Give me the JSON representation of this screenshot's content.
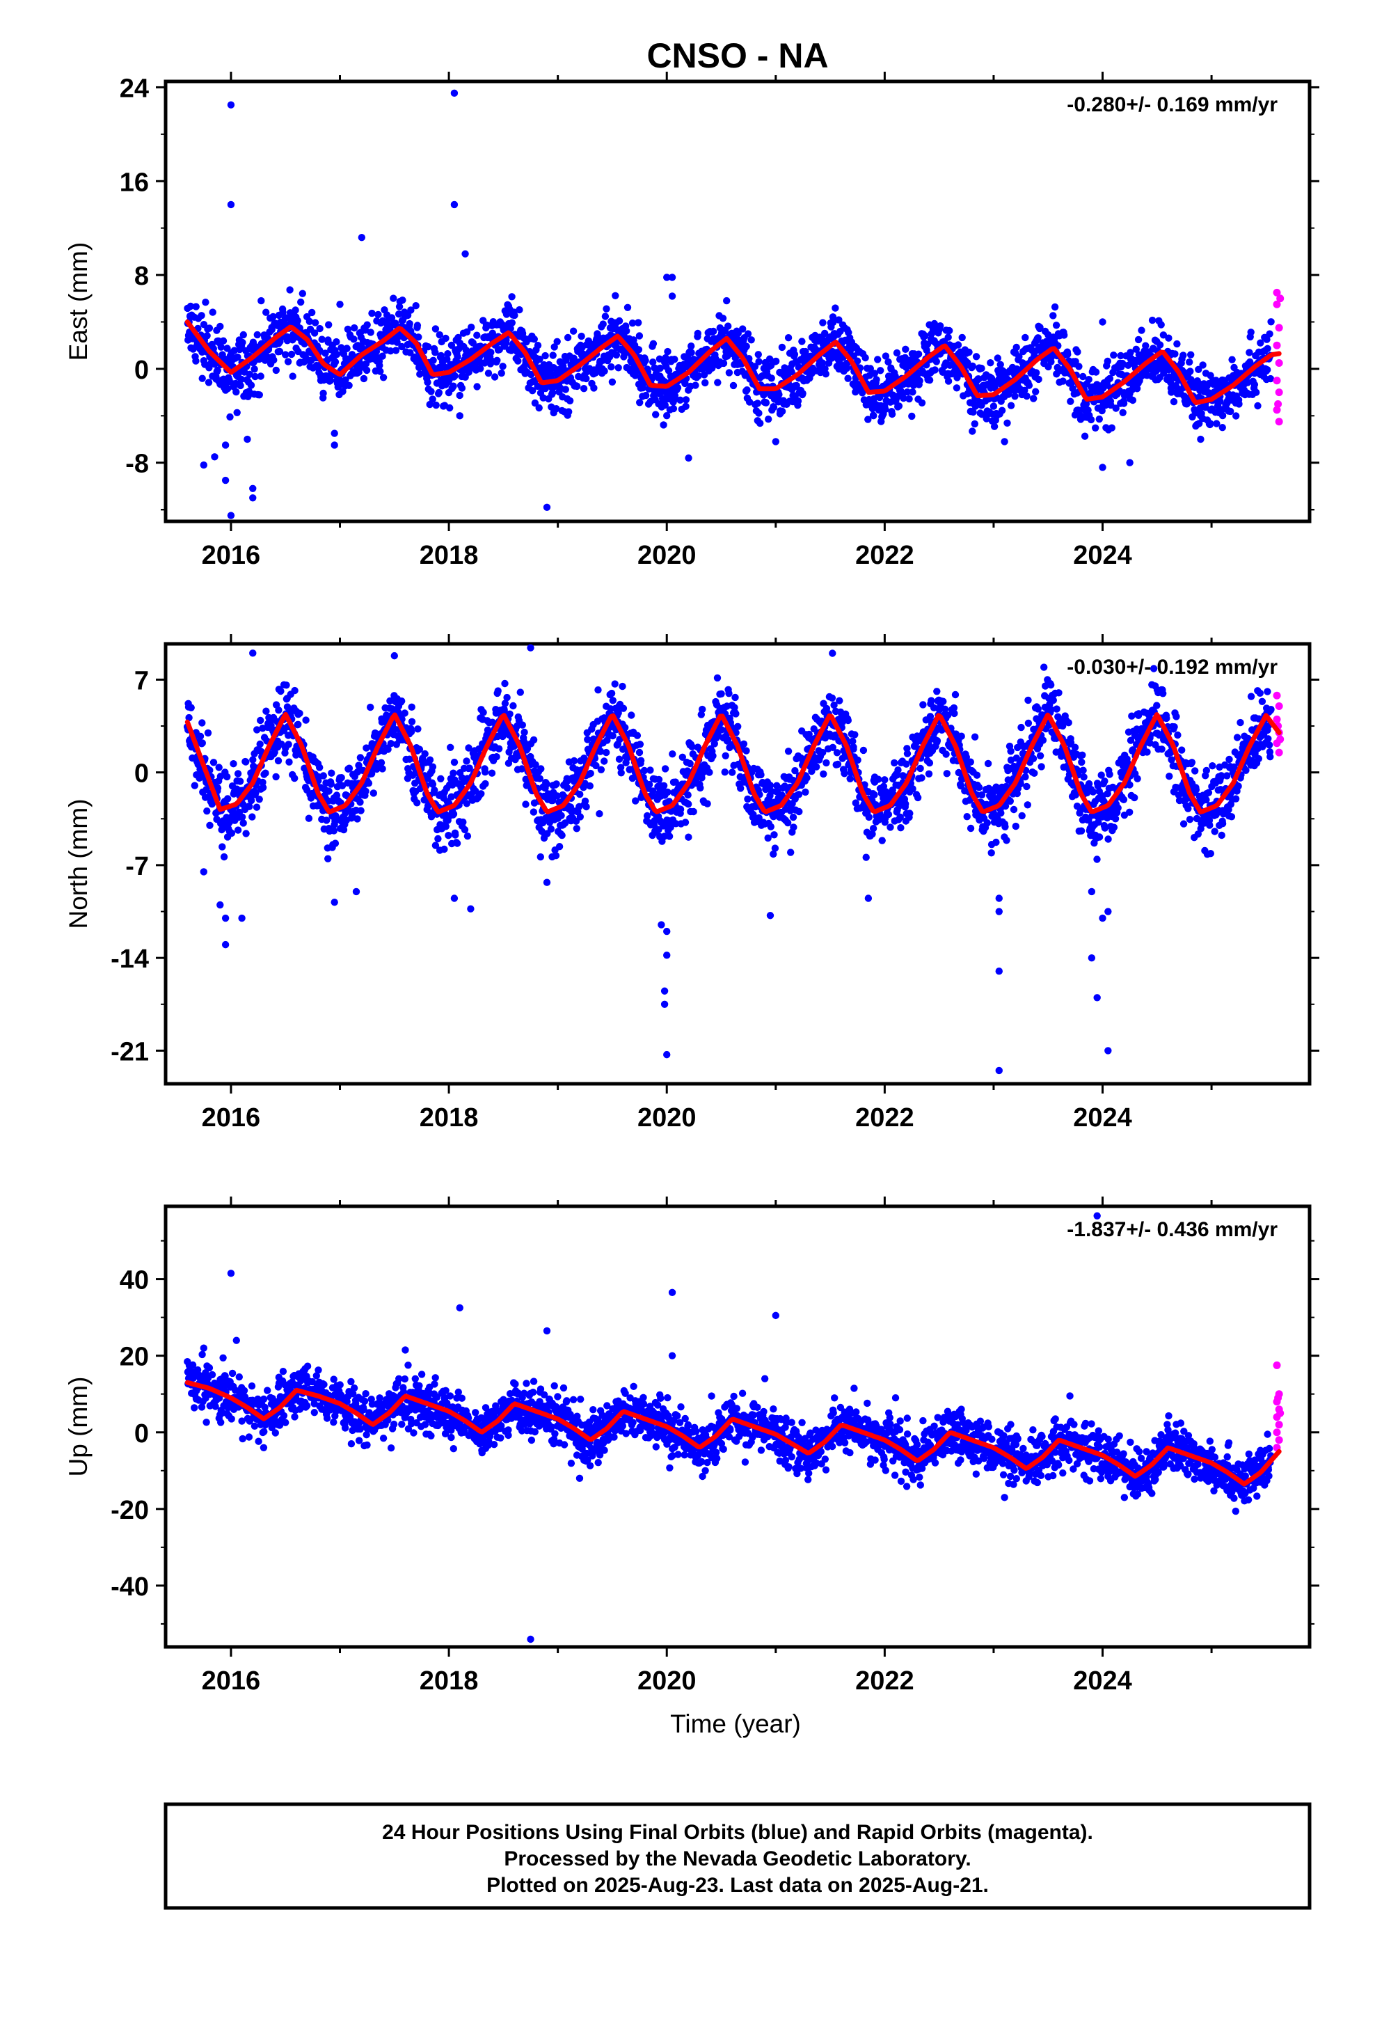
{
  "figure": {
    "title": "CNSO - NA",
    "xlabel": "Time (year)",
    "footer": [
      "24 Hour Positions Using Final Orbits (blue) and Rapid Orbits (magenta).",
      "Processed by the Nevada Geodetic Laboratory.",
      "Plotted on 2025-Aug-23. Last data on 2025-Aug-21."
    ],
    "colors": {
      "final": "#0000ff",
      "rapid": "#ff00ff",
      "model": "#ff0000",
      "frame": "#000000"
    }
  },
  "chart_data": [
    {
      "type": "scatter",
      "ylabel": "East (mm)",
      "rate": "-0.280+/- 0.169 mm/yr",
      "xlim": [
        2015.4,
        2025.9
      ],
      "ylim": [
        -13,
        24.5
      ],
      "yticks": [
        -8,
        0,
        8,
        16,
        24
      ],
      "yticklabels": [
        "-8",
        "0",
        "8",
        "16",
        "24"
      ],
      "xticks": [
        2016,
        2018,
        2020,
        2022,
        2024
      ],
      "xticklabels": [
        "2016",
        "2018",
        "2020",
        "2022",
        "2024"
      ],
      "model": {
        "x": [
          2015.6,
          2015.8,
          2016.0,
          2016.2,
          2016.4,
          2016.55,
          2016.7,
          2016.85,
          2017.0,
          2017.2,
          2017.4,
          2017.55,
          2017.7,
          2017.85,
          2018.0,
          2018.2,
          2018.4,
          2018.55,
          2018.7,
          2018.85,
          2019.0,
          2019.2,
          2019.4,
          2019.55,
          2019.7,
          2019.85,
          2020.0,
          2020.2,
          2020.4,
          2020.55,
          2020.7,
          2020.85,
          2021.0,
          2021.2,
          2021.4,
          2021.55,
          2021.7,
          2021.85,
          2022.0,
          2022.2,
          2022.4,
          2022.55,
          2022.7,
          2022.85,
          2023.0,
          2023.2,
          2023.4,
          2023.55,
          2023.7,
          2023.85,
          2024.0,
          2024.2,
          2024.4,
          2024.55,
          2024.7,
          2024.85,
          2025.0,
          2025.2,
          2025.4,
          2025.55,
          2025.62
        ],
        "y": [
          4.0,
          1.5,
          -0.3,
          1.0,
          2.6,
          3.6,
          2.5,
          0.4,
          -0.5,
          1.2,
          2.4,
          3.5,
          2.2,
          -0.5,
          -0.3,
          0.8,
          2.2,
          3.1,
          1.4,
          -1.2,
          -1.0,
          0.3,
          1.8,
          2.8,
          1.2,
          -1.4,
          -1.5,
          -0.3,
          1.5,
          2.6,
          0.9,
          -1.7,
          -1.7,
          -0.5,
          1.2,
          2.3,
          0.6,
          -2.0,
          -1.9,
          -0.6,
          1.0,
          2.0,
          0.2,
          -2.3,
          -2.2,
          -0.9,
          0.8,
          1.8,
          0.0,
          -2.6,
          -2.4,
          -1.1,
          0.5,
          1.5,
          -0.3,
          -2.9,
          -2.6,
          -1.4,
          0.2,
          1.2,
          1.3
        ]
      },
      "outliers": [
        [
          2016.0,
          22.5
        ],
        [
          2016.0,
          14.0
        ],
        [
          2018.05,
          23.5
        ],
        [
          2018.05,
          14.0
        ],
        [
          2018.15,
          9.8
        ],
        [
          2017.2,
          11.2
        ],
        [
          2015.75,
          -8.2
        ],
        [
          2015.85,
          -7.5
        ],
        [
          2015.95,
          -9.5
        ],
        [
          2016.0,
          -12.5
        ],
        [
          2015.95,
          -6.5
        ],
        [
          2016.15,
          -6.0
        ],
        [
          2016.2,
          -11.0
        ],
        [
          2016.2,
          -10.2
        ],
        [
          2016.95,
          -5.5
        ],
        [
          2016.95,
          -6.5
        ],
        [
          2018.1,
          -4.0
        ],
        [
          2018.9,
          -11.8
        ],
        [
          2020.2,
          -7.6
        ],
        [
          2020.0,
          7.8
        ],
        [
          2020.05,
          7.8
        ],
        [
          2020.05,
          6.2
        ],
        [
          2021.0,
          -6.2
        ],
        [
          2023.1,
          -6.2
        ],
        [
          2024.0,
          4.0
        ],
        [
          2024.0,
          -8.4
        ],
        [
          2024.25,
          -8.0
        ],
        [
          2024.9,
          -6.0
        ],
        [
          2025.1,
          -5.0
        ],
        [
          2017.0,
          5.5
        ]
      ],
      "rapid": [
        [
          2025.6,
          6.5
        ],
        [
          2025.6,
          5.5
        ],
        [
          2025.62,
          3.5
        ],
        [
          2025.6,
          2.0
        ],
        [
          2025.62,
          0.5
        ],
        [
          2025.6,
          -1.0
        ],
        [
          2025.62,
          -2.0
        ],
        [
          2025.6,
          -3.5
        ],
        [
          2025.62,
          -4.5
        ],
        [
          2025.63,
          6.0
        ],
        [
          2025.61,
          -3.0
        ]
      ]
    },
    {
      "type": "scatter",
      "ylabel": "North (mm)",
      "rate": "-0.030+/- 0.192 mm/yr",
      "xlim": [
        2015.4,
        2025.9
      ],
      "ylim": [
        -23.5,
        9.7
      ],
      "yticks": [
        -21,
        -14,
        -7,
        0,
        7
      ],
      "yticklabels": [
        "-21",
        "-14",
        "-7",
        "0",
        "7"
      ],
      "xticks": [
        2016,
        2018,
        2020,
        2022,
        2024
      ],
      "xticklabels": [
        "2016",
        "2018",
        "2020",
        "2022",
        "2024"
      ],
      "model": {
        "x": [
          2015.6,
          2015.75,
          2015.9,
          2016.05,
          2016.2,
          2016.35,
          2016.5,
          2016.65,
          2016.8,
          2016.9,
          2017.05,
          2017.2,
          2017.35,
          2017.5,
          2017.65,
          2017.8,
          2017.9,
          2018.05,
          2018.2,
          2018.35,
          2018.5,
          2018.65,
          2018.8,
          2018.9,
          2019.05,
          2019.2,
          2019.35,
          2019.5,
          2019.65,
          2019.8,
          2019.9,
          2020.05,
          2020.2,
          2020.35,
          2020.5,
          2020.65,
          2020.8,
          2020.9,
          2021.05,
          2021.2,
          2021.35,
          2021.5,
          2021.65,
          2021.8,
          2021.9,
          2022.05,
          2022.2,
          2022.35,
          2022.5,
          2022.65,
          2022.8,
          2022.9,
          2023.05,
          2023.2,
          2023.35,
          2023.5,
          2023.65,
          2023.8,
          2023.9,
          2024.05,
          2024.2,
          2024.35,
          2024.5,
          2024.65,
          2024.8,
          2024.9,
          2025.05,
          2025.2,
          2025.35,
          2025.5,
          2025.62
        ],
        "y": [
          3.8,
          0.5,
          -2.8,
          -2.4,
          -0.8,
          2.0,
          4.4,
          2.0,
          -1.6,
          -3.0,
          -2.5,
          -0.8,
          2.0,
          4.4,
          2.0,
          -1.6,
          -3.0,
          -2.5,
          -0.8,
          2.0,
          4.4,
          2.0,
          -1.6,
          -3.0,
          -2.5,
          -0.8,
          2.0,
          4.4,
          2.0,
          -1.6,
          -3.0,
          -2.5,
          -0.8,
          2.0,
          4.4,
          2.0,
          -1.6,
          -3.0,
          -2.5,
          -0.8,
          2.0,
          4.4,
          2.0,
          -1.6,
          -3.0,
          -2.5,
          -0.8,
          2.0,
          4.4,
          2.0,
          -1.6,
          -3.0,
          -2.5,
          -0.8,
          2.0,
          4.4,
          2.0,
          -1.6,
          -3.0,
          -2.5,
          -0.8,
          2.0,
          4.4,
          2.0,
          -1.6,
          -3.0,
          -2.5,
          -0.8,
          2.0,
          4.3,
          3.0
        ]
      },
      "outliers": [
        [
          2015.9,
          -10.0
        ],
        [
          2015.95,
          -11.0
        ],
        [
          2015.95,
          -13.0
        ],
        [
          2016.1,
          -11.0
        ],
        [
          2015.75,
          -7.5
        ],
        [
          2016.2,
          9.0
        ],
        [
          2017.5,
          8.8
        ],
        [
          2018.75,
          9.4
        ],
        [
          2016.95,
          -9.8
        ],
        [
          2017.15,
          -9.0
        ],
        [
          2018.05,
          -9.5
        ],
        [
          2018.2,
          -10.3
        ],
        [
          2018.9,
          -8.3
        ],
        [
          2019.95,
          -11.5
        ],
        [
          2020.0,
          -12.0
        ],
        [
          2020.0,
          -13.8
        ],
        [
          2019.98,
          -16.5
        ],
        [
          2019.98,
          -17.5
        ],
        [
          2020.0,
          -21.3
        ],
        [
          2020.95,
          -10.8
        ],
        [
          2021.85,
          -9.5
        ],
        [
          2023.05,
          -9.5
        ],
        [
          2023.05,
          -10.5
        ],
        [
          2023.05,
          -15.0
        ],
        [
          2023.05,
          -22.5
        ],
        [
          2023.9,
          -9.0
        ],
        [
          2023.9,
          -14.0
        ],
        [
          2023.95,
          -17.0
        ],
        [
          2024.05,
          -10.5
        ],
        [
          2024.05,
          -21.0
        ],
        [
          2024.0,
          -11.0
        ]
      ],
      "rapid": [
        [
          2025.6,
          5.8
        ],
        [
          2025.62,
          5.0
        ],
        [
          2025.6,
          4.0
        ],
        [
          2025.62,
          3.0
        ],
        [
          2025.6,
          2.2
        ],
        [
          2025.62,
          1.5
        ],
        [
          2025.61,
          3.5
        ],
        [
          2025.63,
          2.5
        ]
      ]
    },
    {
      "type": "scatter",
      "ylabel": "Up (mm)",
      "rate": "-1.837+/- 0.436 mm/yr",
      "xlim": [
        2015.4,
        2025.9
      ],
      "ylim": [
        -56,
        59
      ],
      "yticks": [
        -40,
        -20,
        0,
        20,
        40
      ],
      "yticklabels": [
        "-40",
        "-20",
        "0",
        "20",
        "40"
      ],
      "xticks": [
        2016,
        2018,
        2020,
        2022,
        2024
      ],
      "xticklabels": [
        "2016",
        "2018",
        "2020",
        "2022",
        "2024"
      ],
      "model": {
        "x": [
          2015.6,
          2015.8,
          2016.0,
          2016.15,
          2016.3,
          2016.45,
          2016.6,
          2016.8,
          2017.0,
          2017.15,
          2017.3,
          2017.45,
          2017.6,
          2017.8,
          2018.0,
          2018.15,
          2018.3,
          2018.45,
          2018.6,
          2018.8,
          2019.0,
          2019.15,
          2019.3,
          2019.45,
          2019.6,
          2019.8,
          2020.0,
          2020.15,
          2020.3,
          2020.45,
          2020.6,
          2020.8,
          2021.0,
          2021.15,
          2021.3,
          2021.45,
          2021.6,
          2021.8,
          2022.0,
          2022.15,
          2022.3,
          2022.45,
          2022.6,
          2022.8,
          2023.0,
          2023.15,
          2023.3,
          2023.45,
          2023.6,
          2023.8,
          2024.0,
          2024.15,
          2024.3,
          2024.45,
          2024.6,
          2024.8,
          2025.0,
          2025.15,
          2025.3,
          2025.45,
          2025.62
        ],
        "y": [
          13.0,
          11.5,
          9.0,
          6.5,
          3.5,
          6.5,
          11.0,
          9.5,
          7.5,
          5.0,
          2.0,
          5.0,
          9.5,
          7.5,
          5.5,
          3.0,
          0.0,
          3.0,
          7.5,
          5.5,
          3.5,
          1.0,
          -2.0,
          1.0,
          5.5,
          3.5,
          1.5,
          -1.0,
          -4.0,
          -1.0,
          3.5,
          1.5,
          -0.5,
          -3.0,
          -5.5,
          -2.5,
          2.0,
          0.0,
          -2.0,
          -4.5,
          -7.5,
          -4.5,
          0.0,
          -2.0,
          -4.0,
          -6.5,
          -9.5,
          -6.5,
          -2.0,
          -4.0,
          -6.0,
          -8.5,
          -11.5,
          -8.5,
          -4.0,
          -6.0,
          -8.0,
          -10.5,
          -13.5,
          -10.5,
          -5.0
        ]
      },
      "outliers": [
        [
          2016.0,
          41.5
        ],
        [
          2016.05,
          24.0
        ],
        [
          2018.1,
          32.5
        ],
        [
          2018.9,
          26.5
        ],
        [
          2020.05,
          36.5
        ],
        [
          2020.05,
          20.0
        ],
        [
          2021.0,
          30.5
        ],
        [
          2023.95,
          56.5
        ],
        [
          2018.75,
          -54.0
        ],
        [
          2015.75,
          22.0
        ],
        [
          2017.6,
          21.5
        ],
        [
          2020.9,
          14.0
        ],
        [
          2022.1,
          9.0
        ],
        [
          2023.7,
          9.5
        ],
        [
          2016.3,
          -4.0
        ],
        [
          2019.2,
          -12.0
        ],
        [
          2023.1,
          -17.0
        ],
        [
          2024.2,
          -17.0
        ]
      ],
      "rapid": [
        [
          2025.6,
          17.5
        ],
        [
          2025.62,
          10.0
        ],
        [
          2025.6,
          8.0
        ],
        [
          2025.62,
          6.0
        ],
        [
          2025.6,
          4.0
        ],
        [
          2025.62,
          2.0
        ],
        [
          2025.6,
          0.0
        ],
        [
          2025.62,
          -2.0
        ],
        [
          2025.6,
          -4.0
        ],
        [
          2025.61,
          9.0
        ],
        [
          2025.63,
          5.0
        ]
      ]
    }
  ]
}
